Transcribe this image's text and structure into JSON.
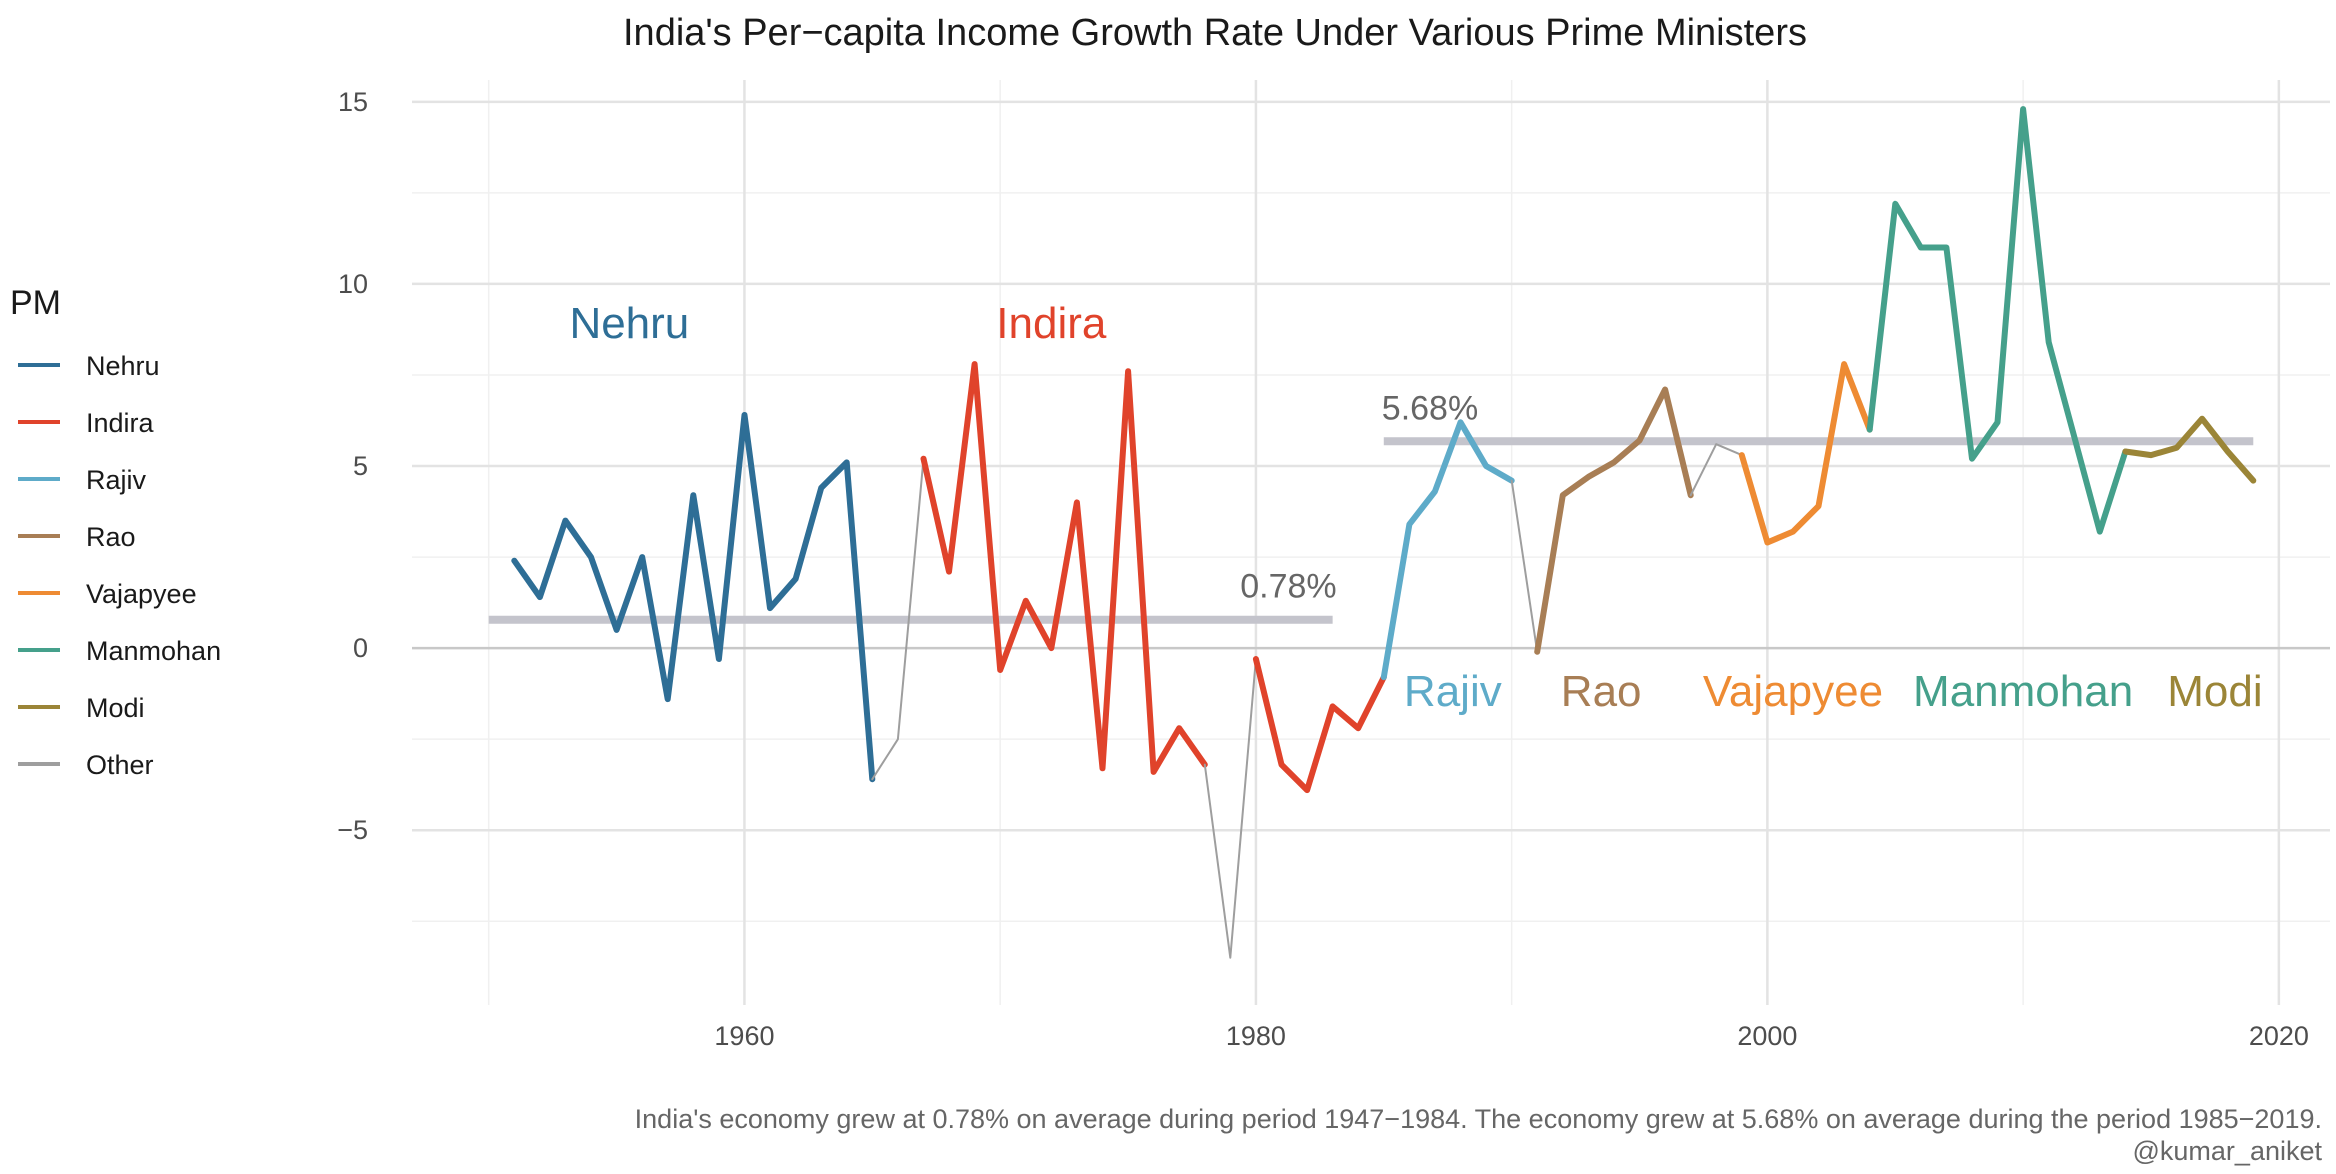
{
  "chart_data": {
    "type": "line",
    "title": "India's Per−capita Income Growth Rate Under Various Prime Ministers",
    "xlabel": "",
    "ylabel": "",
    "xlim": [
      1947,
      2022
    ],
    "ylim": [
      -9.8,
      15.6
    ],
    "x_ticks": [
      1960,
      1980,
      2000,
      2020
    ],
    "y_ticks": [
      -5,
      0,
      5,
      10,
      15
    ],
    "y_tick_labels": [
      "−5",
      "0",
      "5",
      "10",
      "15"
    ],
    "grid": true,
    "legend": {
      "title": "PM",
      "position": "left",
      "entries": [
        {
          "name": "Nehru",
          "color": "#2E6E96"
        },
        {
          "name": "Indira",
          "color": "#E0432B"
        },
        {
          "name": "Rajiv",
          "color": "#5EABC9"
        },
        {
          "name": "Rao",
          "color": "#A87E55"
        },
        {
          "name": "Vajapyee",
          "color": "#EE8B33"
        },
        {
          "name": "Manmohan",
          "color": "#45A08B"
        },
        {
          "name": "Modi",
          "color": "#9B8537"
        },
        {
          "name": "Other",
          "color": "#9E9E9E"
        }
      ]
    },
    "series": [
      {
        "name": "Nehru",
        "color": "#2E6E96",
        "x": [
          1951,
          1952,
          1953,
          1954,
          1955,
          1956,
          1957,
          1958,
          1959,
          1960,
          1961,
          1962,
          1963,
          1964,
          1965
        ],
        "y": [
          2.4,
          1.4,
          3.5,
          2.5,
          0.5,
          2.5,
          -1.4,
          4.2,
          -0.3,
          6.4,
          1.1,
          1.9,
          4.4,
          5.1,
          -3.6
        ]
      },
      {
        "name": "Other",
        "color": "#9E9E9E",
        "x": [
          1965,
          1966,
          1967
        ],
        "y": [
          -3.6,
          -2.5,
          5.2
        ]
      },
      {
        "name": "Indira",
        "color": "#E0432B",
        "x": [
          1967,
          1968,
          1969,
          1970,
          1971,
          1972,
          1973,
          1974,
          1975,
          1976,
          1977,
          1978
        ],
        "y": [
          5.2,
          2.1,
          7.8,
          -0.6,
          1.3,
          0.0,
          4.0,
          -3.3,
          7.6,
          -3.4,
          -2.2,
          -3.2
        ]
      },
      {
        "name": "Other",
        "color": "#9E9E9E",
        "x": [
          1978,
          1979,
          1980
        ],
        "y": [
          -3.2,
          -8.5,
          -0.3
        ]
      },
      {
        "name": "Indira",
        "color": "#E0432B",
        "x": [
          1980,
          1981,
          1982,
          1983,
          1984,
          1985
        ],
        "y": [
          -0.3,
          -3.2,
          -3.9,
          -1.6,
          -2.2,
          -0.8
        ]
      },
      {
        "name": "Rajiv",
        "color": "#5EABC9",
        "x": [
          1985,
          1986,
          1987,
          1988,
          1989,
          1990
        ],
        "y": [
          -0.8,
          3.4,
          4.3,
          6.2,
          5.0,
          4.6
        ]
      },
      {
        "name": "Other",
        "color": "#9E9E9E",
        "x": [
          1990,
          1991
        ],
        "y": [
          4.6,
          -0.1
        ]
      },
      {
        "name": "Rao",
        "color": "#A87E55",
        "x": [
          1991,
          1992,
          1993,
          1994,
          1995,
          1996,
          1997
        ],
        "y": [
          -0.1,
          4.2,
          4.7,
          5.1,
          5.7,
          7.1,
          4.2
        ]
      },
      {
        "name": "Other",
        "color": "#9E9E9E",
        "x": [
          1997,
          1998,
          1999
        ],
        "y": [
          4.2,
          5.6,
          5.3
        ]
      },
      {
        "name": "Vajapyee",
        "color": "#EE8B33",
        "x": [
          1999,
          2000,
          2001,
          2002,
          2003,
          2004
        ],
        "y": [
          5.3,
          2.9,
          3.2,
          3.9,
          7.8,
          6.0
        ]
      },
      {
        "name": "Manmohan",
        "color": "#45A08B",
        "x": [
          2004,
          2005,
          2006,
          2007,
          2008,
          2009,
          2010,
          2011,
          2012,
          2013,
          2014
        ],
        "y": [
          6.0,
          12.2,
          11.0,
          11.0,
          5.2,
          6.2,
          14.8,
          8.4,
          5.8,
          3.2,
          5.4
        ]
      },
      {
        "name": "Modi",
        "color": "#9B8537",
        "x": [
          2014,
          2015,
          2016,
          2017,
          2018,
          2019
        ],
        "y": [
          5.4,
          5.3,
          5.5,
          6.3,
          5.4,
          4.6
        ]
      }
    ],
    "averages": [
      {
        "x0": 1950,
        "x1": 1983,
        "y": 0.78,
        "label": "0.78%"
      },
      {
        "x0": 1985,
        "x1": 2019,
        "y": 5.68,
        "label": "5.68%"
      }
    ],
    "annotations": [
      {
        "text": "Nehru",
        "x": 1955.5,
        "y": 8.9,
        "color": "#2E6E96"
      },
      {
        "text": "Indira",
        "x": 1972,
        "y": 8.9,
        "color": "#E0432B"
      },
      {
        "text": "Rajiv",
        "x": 1987.7,
        "y": -1.2,
        "color": "#5EABC9"
      },
      {
        "text": "Rao",
        "x": 1993.5,
        "y": -1.2,
        "color": "#A87E55"
      },
      {
        "text": "Vajapyee",
        "x": 2001,
        "y": -1.2,
        "color": "#EE8B33"
      },
      {
        "text": "Manmohan",
        "x": 2010,
        "y": -1.2,
        "color": "#45A08B"
      },
      {
        "text": "Modi",
        "x": 2017.5,
        "y": -1.2,
        "color": "#9B8537"
      }
    ],
    "caption_lines": [
      "India's economy grew at 0.78% on average during period 1947−1984. The economy grew at 5.68% on average during the period 1985−2019.",
      "@kumar_aniket"
    ]
  }
}
